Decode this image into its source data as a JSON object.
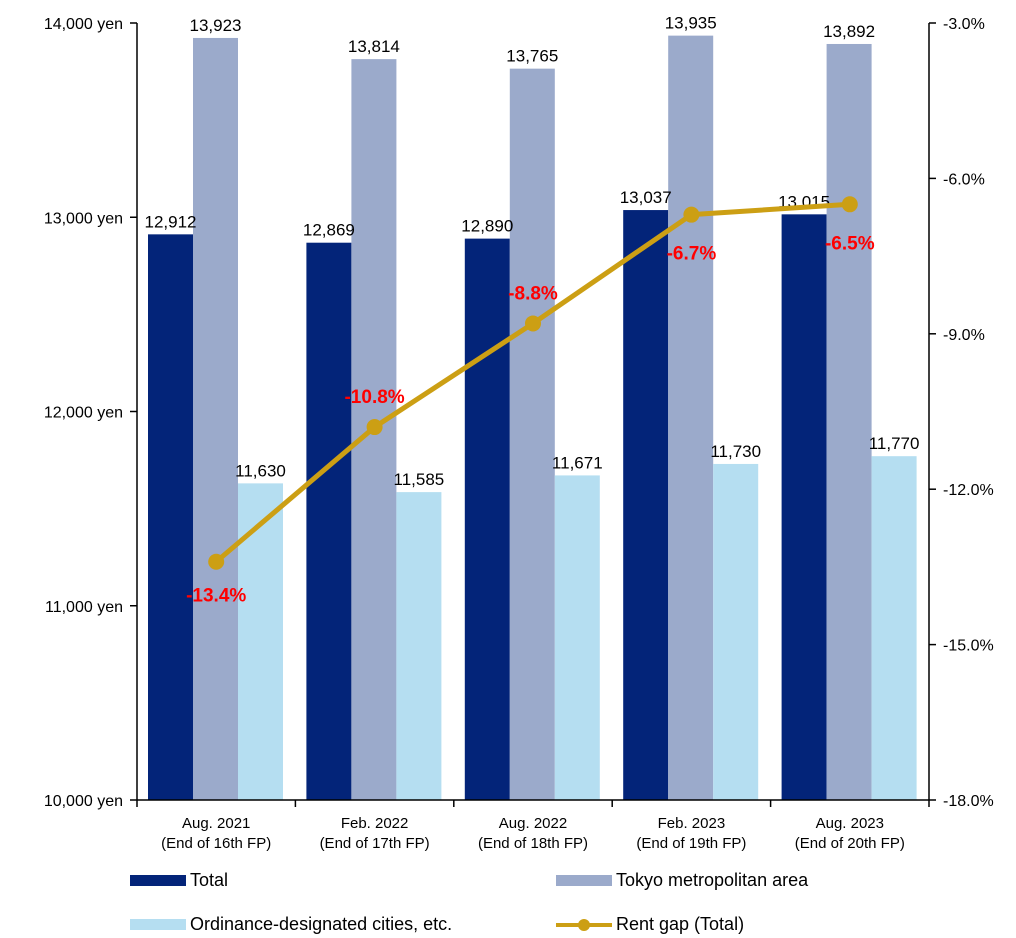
{
  "chart_data": {
    "type": "bar",
    "categories": [
      [
        "Aug. 2021",
        "(End of 16th FP)"
      ],
      [
        "Feb. 2022",
        "(End of 17th FP)"
      ],
      [
        "Aug. 2022",
        "(End of 18th FP)"
      ],
      [
        "Feb. 2023",
        "(End of 19th FP)"
      ],
      [
        "Aug. 2023",
        "(End of 20th FP)"
      ]
    ],
    "series": [
      {
        "name": "Total",
        "color": "#032479",
        "values": [
          12912,
          12869,
          12890,
          13037,
          13015
        ],
        "labels": [
          "12,912",
          "12,869",
          "12,890",
          "13,037",
          "13,015"
        ]
      },
      {
        "name": "Tokyo metropolitan area",
        "color": "#9BAACB",
        "values": [
          13923,
          13814,
          13765,
          13935,
          13892
        ],
        "labels": [
          "13,923",
          "13,814",
          "13,765",
          "13,935",
          "13,892"
        ]
      },
      {
        "name": "Ordinance-designated cities, etc.",
        "color": "#B5DEF1",
        "values": [
          11630,
          11585,
          11671,
          11730,
          11770
        ],
        "labels": [
          "11,630",
          "11,585",
          "11,671",
          "11,730",
          "11,770"
        ]
      }
    ],
    "line_series": {
      "name": "Rent gap (Total)",
      "color": "#CC9F14",
      "label_color": "#FF0000",
      "values": [
        -13.4,
        -10.8,
        -8.8,
        -6.7,
        -6.5
      ],
      "labels": [
        "-13.4%",
        "-10.8%",
        "-8.8%",
        "-6.7%",
        "-6.5%"
      ]
    },
    "left_axis": {
      "ylim": [
        10000,
        14000
      ],
      "ticks": [
        10000,
        11000,
        12000,
        13000,
        14000
      ],
      "tick_labels": [
        "10,000 yen",
        "11,000 yen",
        "12,000 yen",
        "13,000 yen",
        "14,000 yen"
      ]
    },
    "right_axis": {
      "ylim": [
        -18,
        -3
      ],
      "ticks": [
        -18,
        -15,
        -12,
        -9,
        -6,
        -3
      ],
      "tick_labels": [
        "-18.0%",
        "-15.0%",
        "-12.0%",
        "-9.0%",
        "-6.0%",
        "-3.0%"
      ]
    },
    "grid": false,
    "legend_position": "bottom"
  },
  "legend": [
    {
      "label": "Total"
    },
    {
      "label": "Tokyo metropolitan area"
    },
    {
      "label": "Ordinance-designated cities, etc."
    },
    {
      "label": "Rent gap (Total)"
    }
  ]
}
